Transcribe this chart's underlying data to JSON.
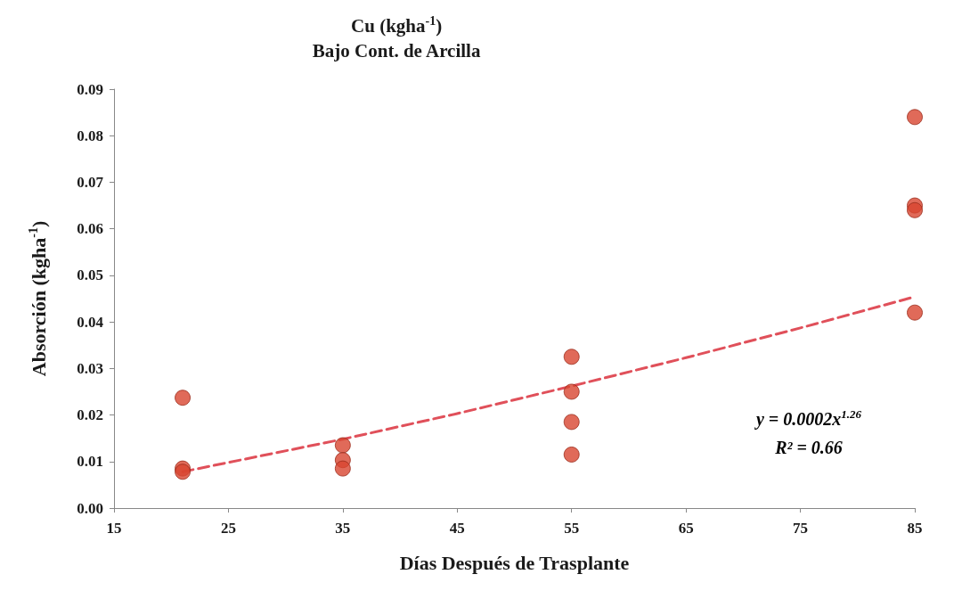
{
  "chart_data": {
    "type": "scatter",
    "title": "Cu (kgha$^{-1}$)",
    "subtitle": "Bajo Cont. de Arcilla",
    "xlabel": "Días Después de Trasplante",
    "ylabel": "Absorción (kgha$^{-1}$)",
    "series": [
      {
        "color": "#d8452f",
        "marker": "circle",
        "x": [
          21,
          21,
          21,
          35,
          35,
          35,
          55,
          55,
          55,
          55,
          85,
          85,
          85,
          85
        ],
        "values": [
          0.0237,
          0.0085,
          0.0078,
          0.0135,
          0.0103,
          0.0085,
          0.0325,
          0.025,
          0.0185,
          0.0115,
          0.084,
          0.065,
          0.064,
          0.042
        ]
      },
      {
        "type": "line",
        "color": "#e0505a",
        "marker": "none",
        "line_style": "dashed",
        "x": [
          21,
          35,
          45,
          55,
          65,
          75,
          85
        ],
        "values": [
          0.0078,
          0.0148,
          0.0203,
          0.0262,
          0.0323,
          0.0387,
          0.0454
        ]
      }
    ],
    "annotations": [
      "y = 0.0002x$^{1.26}$",
      "R² = 0.66"
    ],
    "xlim": [
      15,
      85
    ],
    "xticks": [
      15,
      25,
      35,
      45,
      55,
      65,
      75,
      85
    ],
    "ylim": [
      0,
      0.09
    ],
    "yticks": [
      {
        "value": 0,
        "label": "0.00"
      },
      0.01,
      0.02,
      0.03,
      0.04,
      0.05,
      0.06,
      0.07,
      0.08,
      0.09
    ],
    "grid": false
  }
}
